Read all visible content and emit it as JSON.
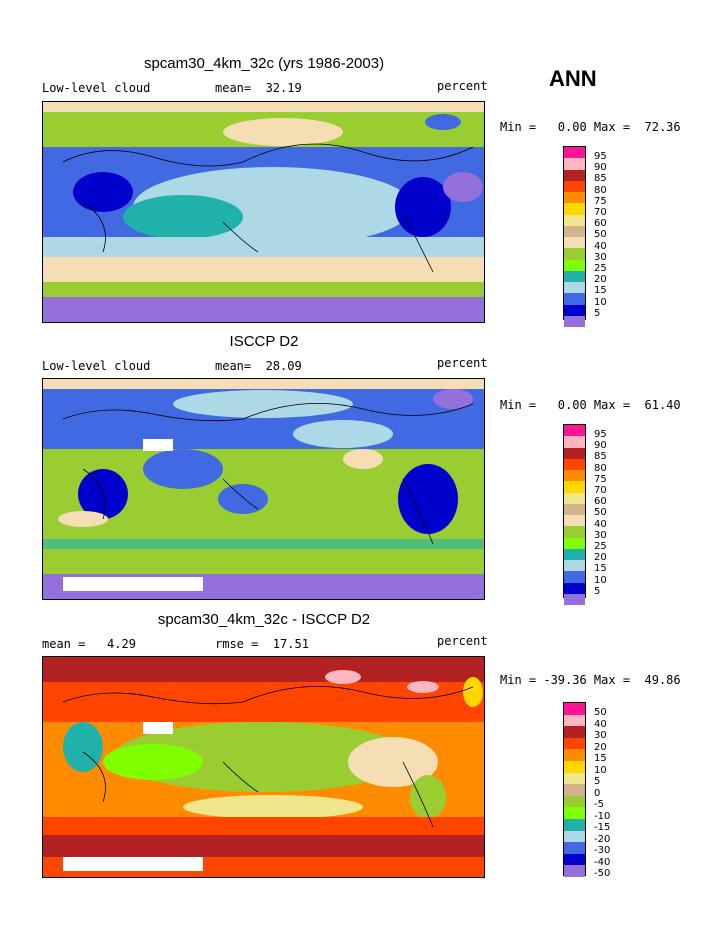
{
  "season": "ANN",
  "panels": [
    {
      "title": "spcam30_4km_32c (yrs 1986-2003)",
      "left_label": "Low-level cloud",
      "mid_label": "mean=  32.19",
      "right_label": "percent",
      "minmax": "Min =   0.00 Max =  72.36",
      "colorbar": {
        "ticks": [
          "95",
          "90",
          "85",
          "80",
          "75",
          "70",
          "60",
          "50",
          "40",
          "30",
          "25",
          "20",
          "15",
          "10",
          "5"
        ],
        "colors": [
          "#ff1493",
          "#ffb6c1",
          "#b22222",
          "#ff4500",
          "#ff8c00",
          "#ffd700",
          "#f0e68c",
          "#d2b48c",
          "#f5deb3",
          "#9acd32",
          "#7fff00",
          "#20b2aa",
          "#add8e6",
          "#4169e1",
          "#0000cd",
          "#9370db"
        ]
      }
    },
    {
      "title": "ISCCP D2",
      "left_label": "Low-level cloud",
      "mid_label": "mean=  28.09",
      "right_label": "percent",
      "minmax": "Min =   0.00 Max =  61.40",
      "colorbar": {
        "ticks": [
          "95",
          "90",
          "85",
          "80",
          "75",
          "70",
          "60",
          "50",
          "40",
          "30",
          "25",
          "20",
          "15",
          "10",
          "5"
        ],
        "colors": [
          "#ff1493",
          "#ffb6c1",
          "#b22222",
          "#ff4500",
          "#ff8c00",
          "#ffd700",
          "#f0e68c",
          "#d2b48c",
          "#f5deb3",
          "#9acd32",
          "#7fff00",
          "#20b2aa",
          "#add8e6",
          "#4169e1",
          "#0000cd",
          "#9370db"
        ]
      }
    },
    {
      "title": "spcam30_4km_32c - ISCCP D2",
      "left_label": "mean =   4.29",
      "mid_label": "rmse =  17.51",
      "right_label": "percent",
      "minmax": "Min = -39.36 Max =  49.86",
      "colorbar": {
        "ticks": [
          "50",
          "40",
          "30",
          "20",
          "15",
          "10",
          "5",
          "0",
          "-5",
          "-10",
          "-15",
          "-20",
          "-30",
          "-40",
          "-50"
        ],
        "colors": [
          "#ff1493",
          "#ffb6c1",
          "#b22222",
          "#ff4500",
          "#ff8c00",
          "#ffd700",
          "#f0e68c",
          "#d2b48c",
          "#9acd32",
          "#7fff00",
          "#20b2aa",
          "#add8e6",
          "#4169e1",
          "#0000cd",
          "#9370db",
          "#9370db"
        ]
      }
    }
  ]
}
